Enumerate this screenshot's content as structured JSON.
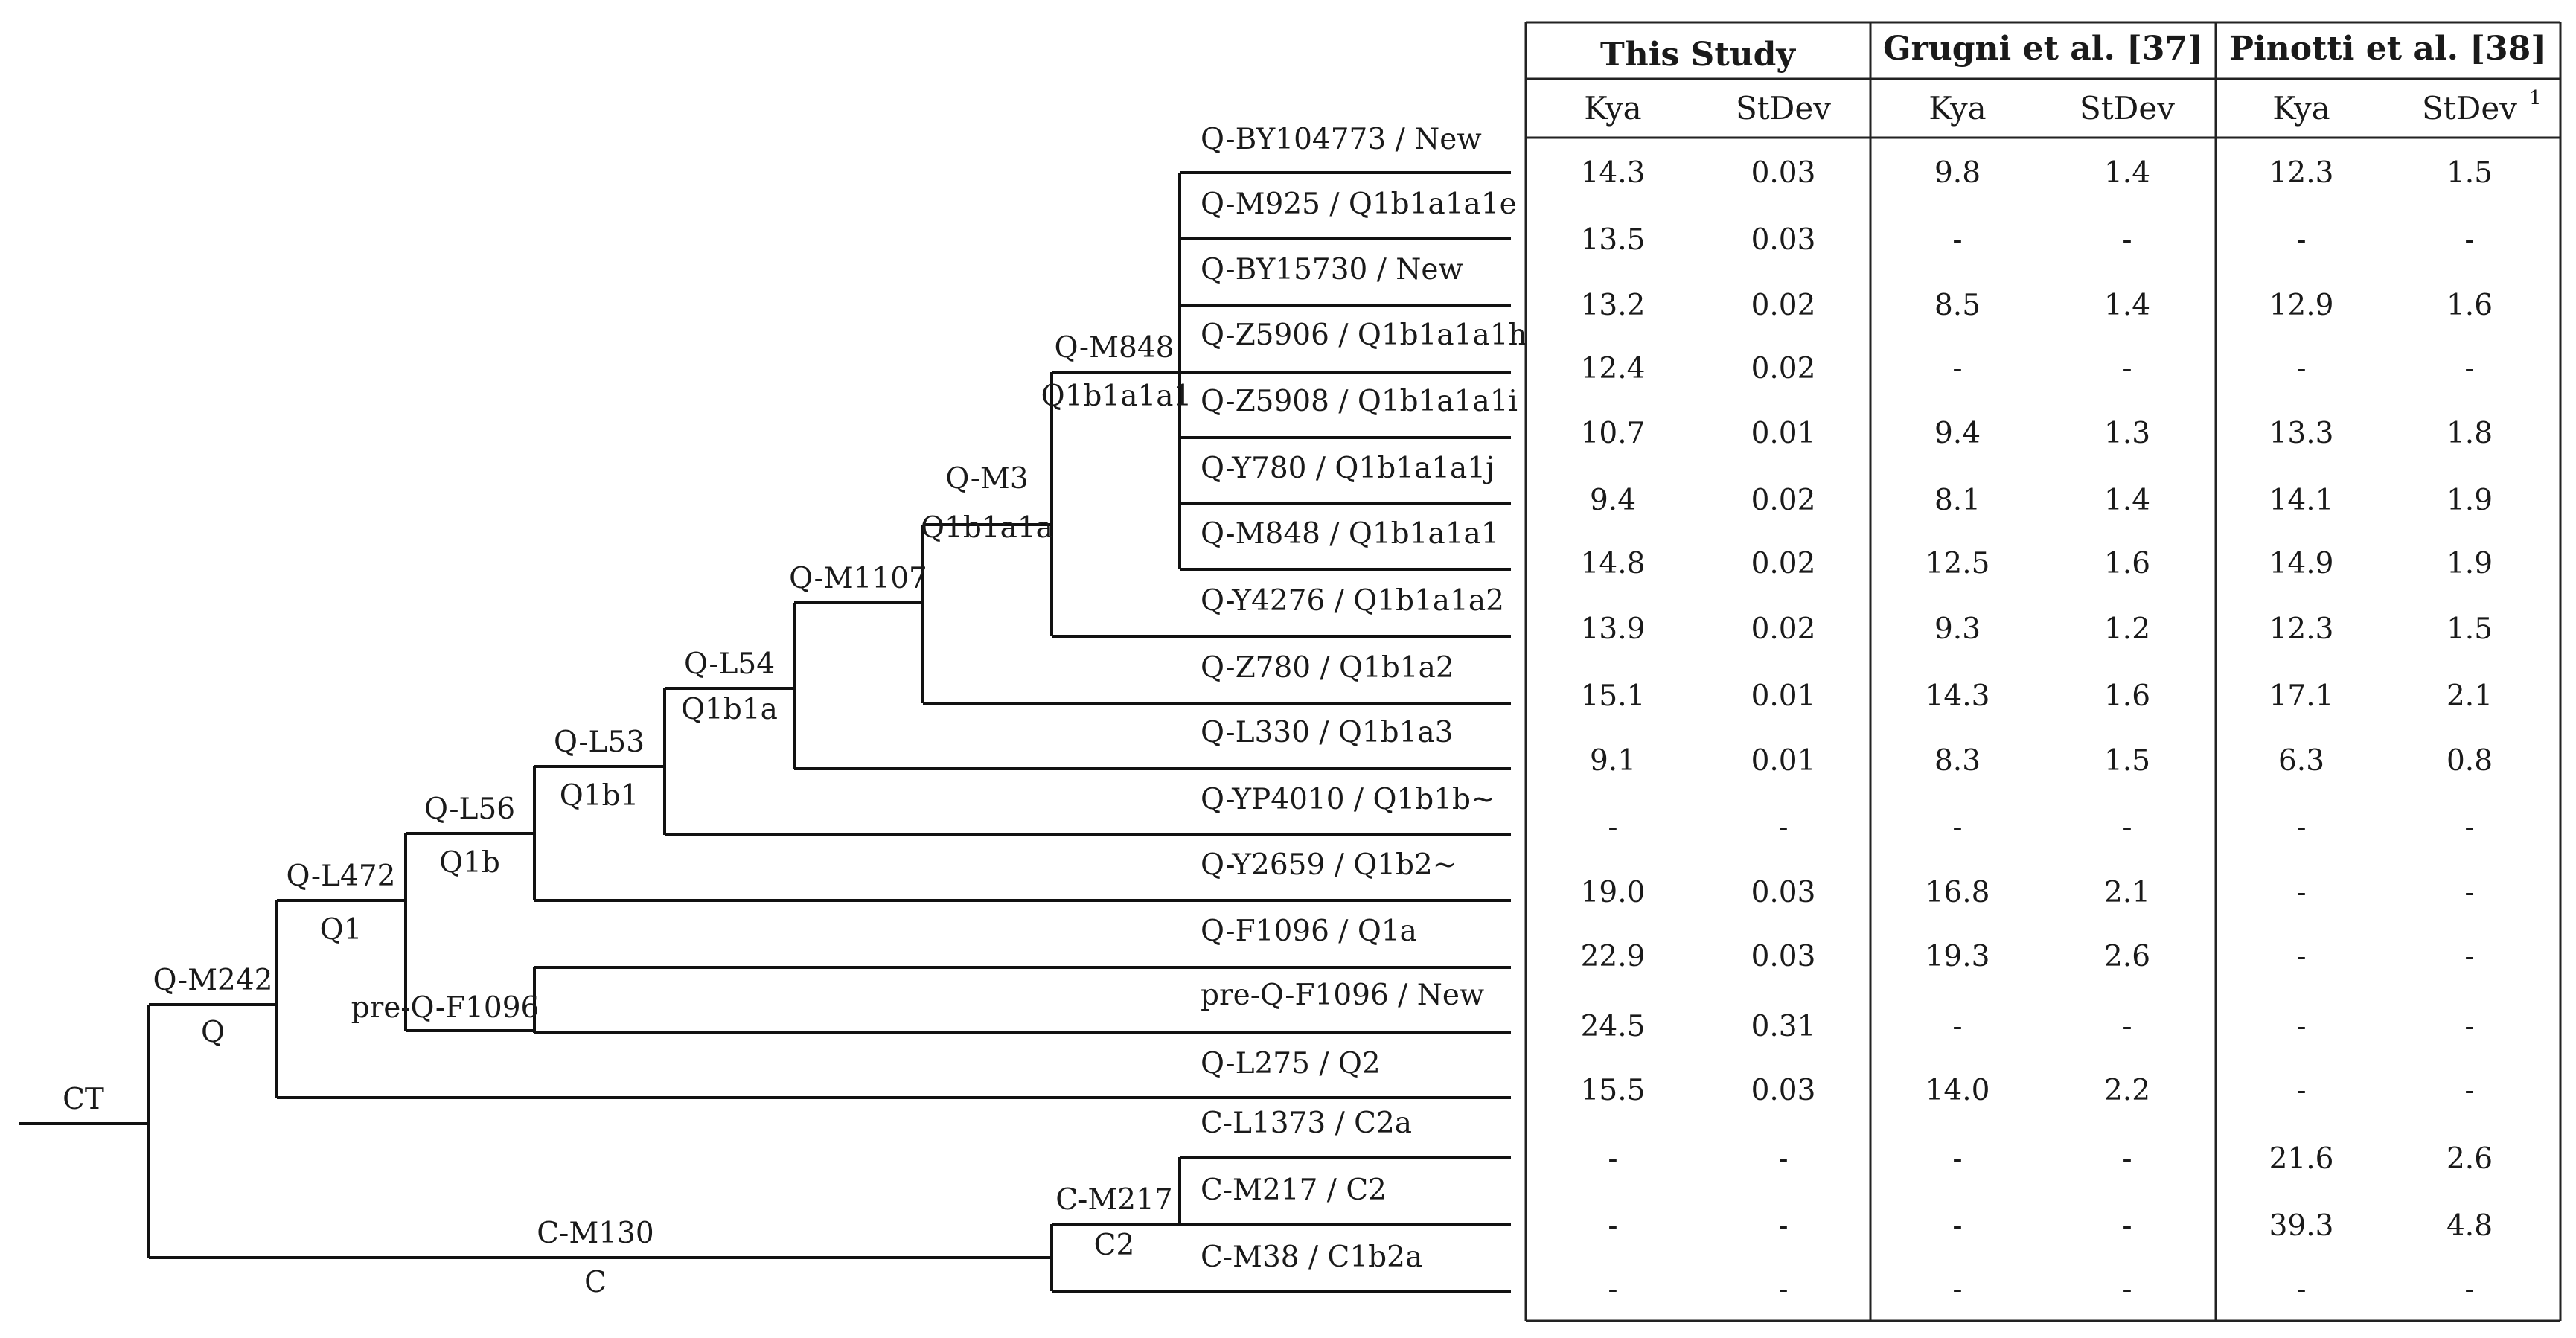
{
  "tree": {
    "root": "CT",
    "nodes": [
      {
        "id": "m242",
        "top": "Q-M242",
        "bottom": "Q"
      },
      {
        "id": "l472",
        "top": "Q-L472",
        "bottom": "Q1"
      },
      {
        "id": "l56",
        "top": "Q-L56",
        "bottom": "Q1b"
      },
      {
        "id": "pre",
        "top": "pre-Q-F1096",
        "bottom": ""
      },
      {
        "id": "l53",
        "top": "Q-L53",
        "bottom": "Q1b1"
      },
      {
        "id": "l54",
        "top": "Q-L54",
        "bottom": "Q1b1a"
      },
      {
        "id": "m1107",
        "top": "Q-M1107",
        "bottom": ""
      },
      {
        "id": "m3",
        "top": "Q-M3",
        "bottom": "Q1b1a1a"
      },
      {
        "id": "m848",
        "top": "Q-M848",
        "bottom": "Q1b1a1a1"
      },
      {
        "id": "m130",
        "top": "C-M130",
        "bottom": "C"
      },
      {
        "id": "m217",
        "top": "C-M217",
        "bottom": "C2"
      }
    ],
    "leaves": [
      "Q-BY104773 / New",
      "Q-M925 / Q1b1a1a1e",
      "Q-BY15730 / New",
      "Q-Z5906 / Q1b1a1a1h",
      "Q-Z5908 / Q1b1a1a1i",
      "Q-Y780 / Q1b1a1a1j",
      "Q-M848 / Q1b1a1a1",
      "Q-Y4276 / Q1b1a1a2",
      "Q-Z780 / Q1b1a2",
      "Q-L330 / Q1b1a3",
      "Q-YP4010 / Q1b1b~",
      "Q-Y2659 / Q1b2~",
      "Q-F1096 / Q1a",
      "pre-Q-F1096 / New",
      "Q-L275 / Q2",
      "C-L1373 / C2a",
      "C-M217 / C2",
      "C-M38 / C1b2a"
    ]
  },
  "table": {
    "groups": [
      "This Study",
      "Grugni et al. [37]",
      "Pinotti et al. [38]"
    ],
    "subheaders": [
      "Kya",
      "StDev",
      "Kya",
      "StDev",
      "Kya",
      "StDev"
    ],
    "footnote_mark": "1",
    "rows": [
      [
        "14.3",
        "0.03",
        "9.8",
        "1.4",
        "12.3",
        "1.5"
      ],
      [
        "13.5",
        "0.03",
        "-",
        "-",
        "-",
        "-"
      ],
      [
        "13.2",
        "0.02",
        "8.5",
        "1.4",
        "12.9",
        "1.6"
      ],
      [
        "12.4",
        "0.02",
        "-",
        "-",
        "-",
        "-"
      ],
      [
        "10.7",
        "0.01",
        "9.4",
        "1.3",
        "13.3",
        "1.8"
      ],
      [
        "9.4",
        "0.02",
        "8.1",
        "1.4",
        "14.1",
        "1.9"
      ],
      [
        "14.8",
        "0.02",
        "12.5",
        "1.6",
        "14.9",
        "1.9"
      ],
      [
        "13.9",
        "0.02",
        "9.3",
        "1.2",
        "12.3",
        "1.5"
      ],
      [
        "15.1",
        "0.01",
        "14.3",
        "1.6",
        "17.1",
        "2.1"
      ],
      [
        "9.1",
        "0.01",
        "8.3",
        "1.5",
        "6.3",
        "0.8"
      ],
      [
        "-",
        "-",
        "-",
        "-",
        "-",
        "-"
      ],
      [
        "19.0",
        "0.03",
        "16.8",
        "2.1",
        "-",
        "-"
      ],
      [
        "22.9",
        "0.03",
        "19.3",
        "2.6",
        "-",
        "-"
      ],
      [
        "24.5",
        "0.31",
        "-",
        "-",
        "-",
        "-"
      ],
      [
        "15.5",
        "0.03",
        "14.0",
        "2.2",
        "-",
        "-"
      ],
      [
        "-",
        "-",
        "-",
        "-",
        "21.6",
        "2.6"
      ],
      [
        "-",
        "-",
        "-",
        "-",
        "39.3",
        "4.8"
      ],
      [
        "-",
        "-",
        "-",
        "-",
        "-",
        "-"
      ]
    ]
  }
}
